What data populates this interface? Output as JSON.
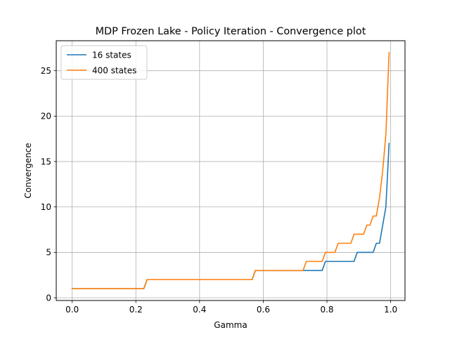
{
  "chart_data": {
    "type": "line",
    "title": "MDP Frozen Lake - Policy Iteration - Convergence plot",
    "xlabel": "Gamma",
    "ylabel": "Convergence",
    "xlim": [
      -0.05,
      1.045
    ],
    "ylim": [
      -0.3,
      28.3
    ],
    "xticks": [
      0.0,
      0.2,
      0.4,
      0.6,
      0.8,
      1.0
    ],
    "xtick_labels": [
      "0.0",
      "0.2",
      "0.4",
      "0.6",
      "0.8",
      "1.0"
    ],
    "yticks": [
      0,
      5,
      10,
      15,
      20,
      25
    ],
    "ytick_labels": [
      "0",
      "5",
      "10",
      "15",
      "20",
      "25"
    ],
    "grid": true,
    "legend": "top-left",
    "series": [
      {
        "name": "16 states",
        "color": "#1f77b4",
        "x": [
          0.0,
          0.225,
          0.235,
          0.565,
          0.575,
          0.785,
          0.795,
          0.885,
          0.895,
          0.945,
          0.955,
          0.965,
          0.975,
          0.985,
          0.995
        ],
        "y": [
          1,
          1,
          2,
          2,
          3,
          3,
          4,
          4,
          5,
          5,
          6,
          6,
          8,
          10,
          17
        ]
      },
      {
        "name": "400 states",
        "color": "#ff7f0e",
        "x": [
          0.0,
          0.225,
          0.235,
          0.565,
          0.575,
          0.725,
          0.735,
          0.785,
          0.795,
          0.825,
          0.835,
          0.875,
          0.885,
          0.915,
          0.925,
          0.935,
          0.945,
          0.955,
          0.965,
          0.975,
          0.985,
          0.995
        ],
        "y": [
          1,
          1,
          2,
          2,
          3,
          3,
          4,
          4,
          5,
          5,
          6,
          6,
          7,
          7,
          8,
          8,
          9,
          9,
          11,
          14,
          18,
          27
        ]
      }
    ]
  }
}
